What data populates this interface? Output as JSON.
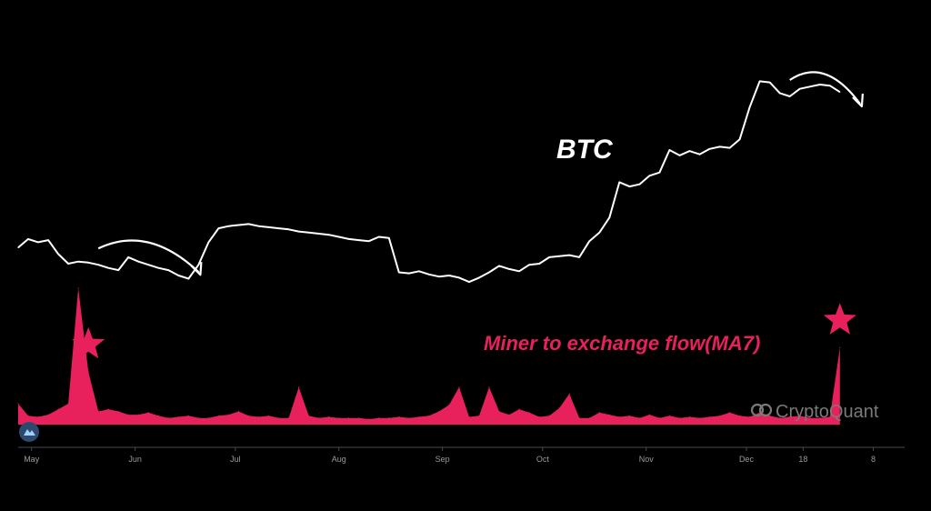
{
  "colors": {
    "background": "#000000",
    "btc_line": "#ffffff",
    "flow_fill": "#e8205c",
    "accent": "#e8205c",
    "axis": "#4a4a4a",
    "tick_text": "#9a9a9a",
    "watermark": "#7a7a7a",
    "logo_badge": "#2b4a6e"
  },
  "watermark": {
    "text": "CryptoQuant",
    "icon": "cryptoquant-logo-icon"
  },
  "logo_badge": {
    "icon": "cryptoquant-badge-icon"
  },
  "chart_data": {
    "type": "line",
    "x": [
      "2023-04-27",
      "2023-04-30",
      "2023-05-03",
      "2023-05-06",
      "2023-05-09",
      "2023-05-12",
      "2023-05-15",
      "2023-05-18",
      "2023-05-21",
      "2023-05-24",
      "2023-05-27",
      "2023-05-30",
      "2023-06-02",
      "2023-06-05",
      "2023-06-08",
      "2023-06-11",
      "2023-06-14",
      "2023-06-17",
      "2023-06-20",
      "2023-06-23",
      "2023-06-26",
      "2023-06-29",
      "2023-07-02",
      "2023-07-05",
      "2023-07-08",
      "2023-07-11",
      "2023-07-14",
      "2023-07-17",
      "2023-07-20",
      "2023-07-23",
      "2023-07-26",
      "2023-07-29",
      "2023-08-01",
      "2023-08-04",
      "2023-08-07",
      "2023-08-10",
      "2023-08-13",
      "2023-08-16",
      "2023-08-19",
      "2023-08-22",
      "2023-08-25",
      "2023-08-28",
      "2023-08-31",
      "2023-09-03",
      "2023-09-06",
      "2023-09-09",
      "2023-09-12",
      "2023-09-15",
      "2023-09-18",
      "2023-09-21",
      "2023-09-24",
      "2023-09-27",
      "2023-09-30",
      "2023-10-03",
      "2023-10-06",
      "2023-10-09",
      "2023-10-12",
      "2023-10-15",
      "2023-10-18",
      "2023-10-21",
      "2023-10-24",
      "2023-10-27",
      "2023-10-30",
      "2023-11-02",
      "2023-11-05",
      "2023-11-08",
      "2023-11-11",
      "2023-11-14",
      "2023-11-17",
      "2023-11-20",
      "2023-11-23",
      "2023-11-26",
      "2023-11-29",
      "2023-12-02",
      "2023-12-05",
      "2023-12-08",
      "2023-12-11",
      "2023-12-14",
      "2023-12-17",
      "2023-12-20",
      "2023-12-23",
      "2023-12-26",
      "2023-12-29"
    ],
    "series": [
      {
        "name": "BTC",
        "color": "#ffffff",
        "style": "line",
        "values": [
          28400,
          29200,
          28900,
          29100,
          27800,
          26900,
          27100,
          27000,
          26800,
          26500,
          26300,
          27500,
          27100,
          26800,
          26500,
          26300,
          25800,
          25500,
          26800,
          28900,
          30200,
          30400,
          30500,
          30600,
          30400,
          30300,
          30200,
          30100,
          29900,
          29800,
          29700,
          29600,
          29400,
          29200,
          29100,
          29000,
          29400,
          29300,
          26100,
          26000,
          26200,
          25900,
          25700,
          25800,
          25600,
          25200,
          25600,
          26100,
          26700,
          26400,
          26200,
          26800,
          26900,
          27500,
          27600,
          27700,
          27500,
          29000,
          29800,
          31200,
          34500,
          34100,
          34300,
          35100,
          35400,
          37500,
          37000,
          37400,
          37100,
          37600,
          37800,
          37700,
          38500,
          41500,
          43900,
          43800,
          42800,
          42500,
          43200,
          43400,
          43600,
          43500,
          42900
        ]
      },
      {
        "name": "Miner to exchange flow(MA7)",
        "color": "#e8205c",
        "style": "area",
        "values": [
          95,
          40,
          35,
          45,
          70,
          95,
          620,
          240,
          60,
          70,
          60,
          45,
          45,
          55,
          40,
          30,
          35,
          40,
          30,
          30,
          40,
          45,
          60,
          40,
          35,
          40,
          30,
          30,
          170,
          40,
          30,
          35,
          30,
          30,
          30,
          25,
          30,
          30,
          35,
          30,
          35,
          40,
          60,
          90,
          170,
          35,
          40,
          170,
          60,
          45,
          70,
          55,
          35,
          40,
          75,
          140,
          30,
          30,
          55,
          45,
          35,
          40,
          30,
          45,
          30,
          40,
          30,
          35,
          30,
          35,
          40,
          55,
          40,
          35,
          55,
          40,
          30,
          35,
          40,
          30,
          30,
          35,
          350
        ]
      }
    ],
    "x_ticks": [
      {
        "date": "2023-05-01",
        "label": "May"
      },
      {
        "date": "2023-06-01",
        "label": "Jun"
      },
      {
        "date": "2023-07-01",
        "label": "Jul"
      },
      {
        "date": "2023-08-01",
        "label": "Aug"
      },
      {
        "date": "2023-09-01",
        "label": "Sep"
      },
      {
        "date": "2023-10-01",
        "label": "Oct"
      },
      {
        "date": "2023-11-01",
        "label": "Nov"
      },
      {
        "date": "2023-12-01",
        "label": "Dec"
      },
      {
        "date": "2023-12-18",
        "label": "18"
      },
      {
        "date": "2024-01-08",
        "label": "8"
      }
    ],
    "xlim": [
      "2023-04-27",
      "2024-01-22"
    ],
    "btc_ylim": [
      20800,
      44700
    ],
    "flow_ylim": [
      0,
      1600
    ],
    "annotations": {
      "btc_label": "BTC",
      "flow_label": "Miner to exchange flow(MA7)",
      "stars": [
        {
          "date": "2023-05-18",
          "note": "spike"
        },
        {
          "date": "2023-12-29",
          "note": "spike"
        }
      ],
      "arrows": [
        {
          "from": "2023-05-21",
          "to": "2023-06-20"
        },
        {
          "from": "2023-12-14",
          "to": "2024-01-04"
        }
      ]
    },
    "grid": false,
    "legend": "none"
  }
}
